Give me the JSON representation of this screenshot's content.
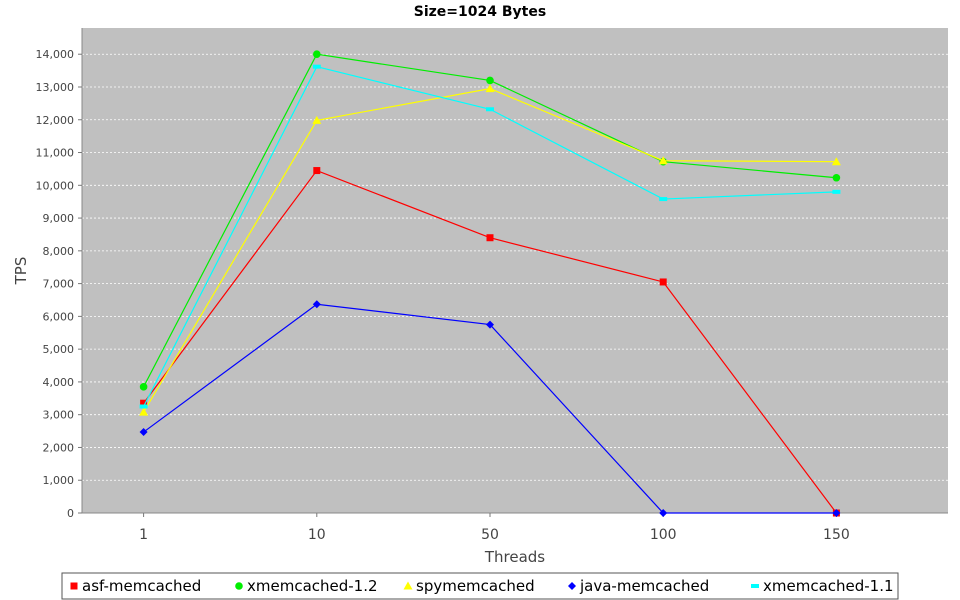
{
  "chart_data": {
    "type": "line",
    "title": "Size=1024 Bytes",
    "xlabel": "Threads",
    "ylabel": "TPS",
    "categories": [
      "1",
      "10",
      "50",
      "100",
      "150"
    ],
    "ylim": [
      0,
      14800
    ],
    "yticks": [
      0,
      1000,
      2000,
      3000,
      4000,
      5000,
      6000,
      7000,
      8000,
      9000,
      10000,
      11000,
      12000,
      13000,
      14000
    ],
    "grid": true,
    "legend_position": "bottom",
    "plot_background": "#c0c0c0",
    "series": [
      {
        "name": "asf-memcached",
        "color": "#ff0000",
        "marker": "square",
        "values": [
          3350,
          10450,
          8400,
          7050,
          0
        ]
      },
      {
        "name": "xmemcached-1.2",
        "color": "#00ee00",
        "marker": "circle",
        "values": [
          3850,
          14000,
          13200,
          10720,
          10230
        ]
      },
      {
        "name": "spymemcached",
        "color": "#ffff00",
        "marker": "triangle",
        "values": [
          3080,
          11980,
          12950,
          10750,
          10720
        ]
      },
      {
        "name": "java-memcached",
        "color": "#0000ff",
        "marker": "diamond",
        "values": [
          2470,
          6370,
          5750,
          0,
          0
        ]
      },
      {
        "name": "xmemcached-1.1",
        "color": "#00ffff",
        "marker": "hbar",
        "values": [
          3250,
          13620,
          12320,
          9580,
          9800
        ]
      }
    ]
  }
}
